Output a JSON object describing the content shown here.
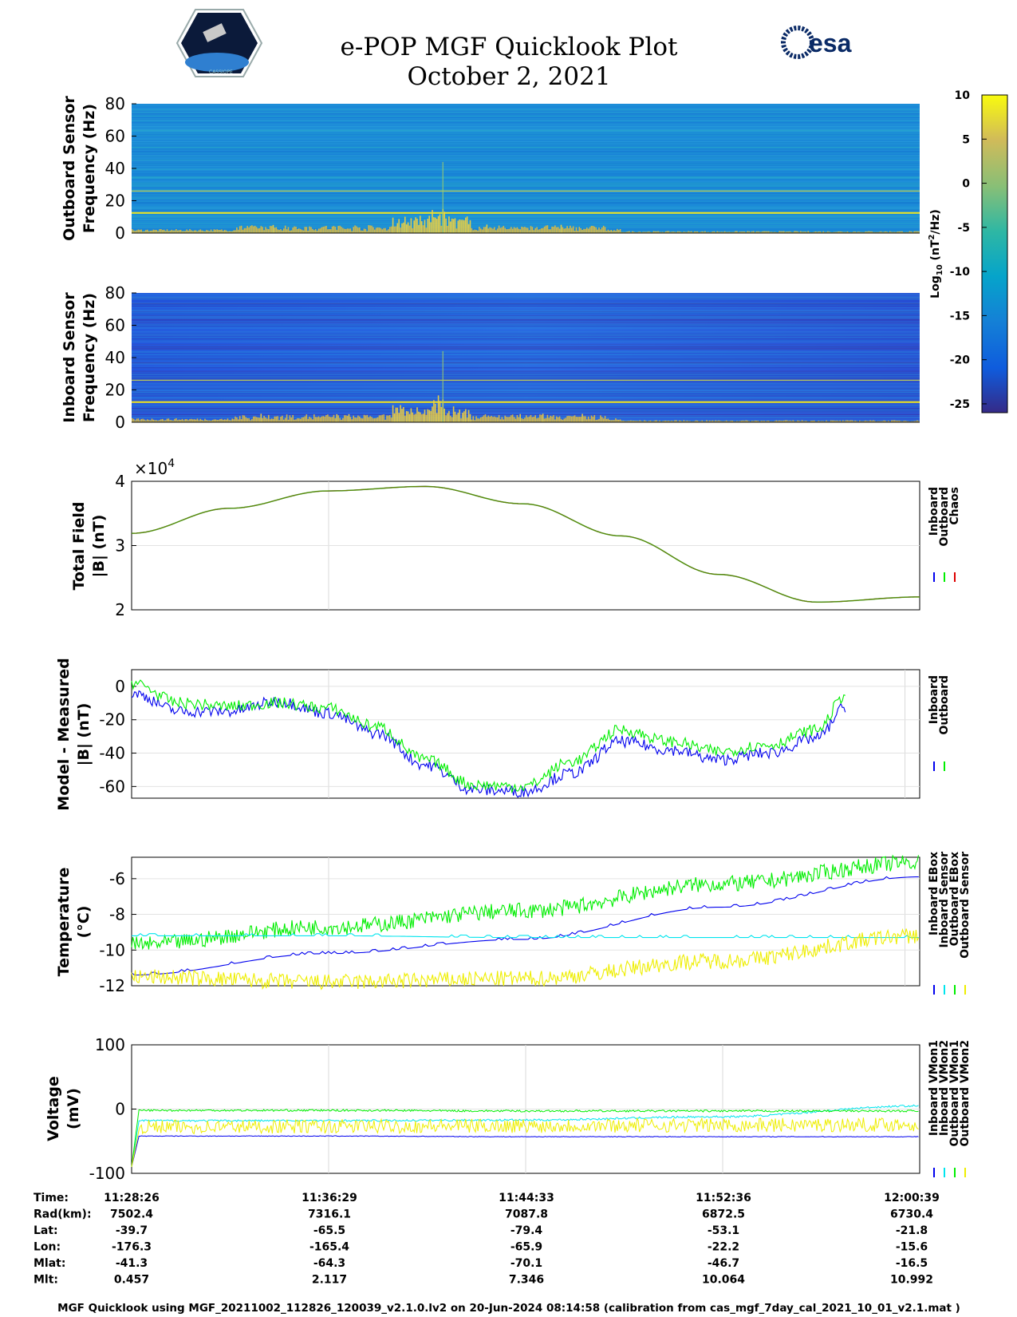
{
  "header": {
    "title": "e-POP MGF Quicklook Plot",
    "date": "October 2, 2021",
    "left_logo_text": "CASSIOPE",
    "right_logo_text": "esa"
  },
  "colors": {
    "inboard": "#0000ee",
    "outboard": "#00ee00",
    "chaos": "#dd0000",
    "inboard_sensor_temp": "#00e5ee",
    "outboard_sensor_temp": "#eeee00"
  },
  "chart_data": [
    {
      "type": "heatmap",
      "name": "outboard-spectrogram",
      "ylabel": [
        "Outboard Sensor",
        "Frequency (Hz)"
      ],
      "ylim": [
        0,
        80
      ],
      "yticks": [
        0,
        20,
        40,
        60,
        80
      ],
      "background_level": -14,
      "lines_hz": [
        12.5,
        26
      ]
    },
    {
      "type": "heatmap",
      "name": "inboard-spectrogram",
      "ylabel": [
        "Inboard Sensor",
        "Frequency (Hz)"
      ],
      "ylim": [
        0,
        80
      ],
      "yticks": [
        0,
        20,
        40,
        60,
        80
      ],
      "background_level": -18,
      "lines_hz": [
        12.5,
        26
      ]
    },
    {
      "type": "line",
      "name": "total-field",
      "ylabel": [
        "Total Field",
        "|B| (nT)"
      ],
      "ylim": [
        2,
        4
      ],
      "yticks": [
        2,
        3,
        4
      ],
      "exponent_label": "×10",
      "exponent": "4",
      "x_minutes": [
        0,
        4,
        8,
        12,
        16,
        20,
        24,
        28,
        32.2
      ],
      "series": [
        {
          "name": "Inboard",
          "values": [
            3.19,
            3.58,
            3.85,
            3.92,
            3.65,
            3.15,
            2.55,
            2.12,
            2.2
          ]
        },
        {
          "name": "Outboard",
          "values": [
            3.19,
            3.58,
            3.85,
            3.92,
            3.65,
            3.15,
            2.55,
            2.12,
            2.2
          ]
        },
        {
          "name": "Chaos",
          "values": [
            3.19,
            3.58,
            3.85,
            3.92,
            3.65,
            3.15,
            2.55,
            2.12,
            2.2
          ]
        }
      ],
      "legend": [
        "Inboard",
        "Outboard",
        "Chaos"
      ]
    },
    {
      "type": "line",
      "name": "model-minus-measured",
      "ylabel": [
        "Model - Measured",
        "|B| (nT)"
      ],
      "ylim": [
        -67,
        10
      ],
      "yticks": [
        -60,
        -40,
        -20,
        0
      ],
      "x_minutes": [
        0,
        2,
        4,
        6,
        8,
        10,
        12,
        14,
        16,
        18,
        20,
        22,
        24,
        26,
        28,
        29.2
      ],
      "series": [
        {
          "name": "Inboard",
          "values": [
            -4,
            -15,
            -15,
            -9,
            -16,
            -28,
            -47,
            -62,
            -63,
            -52,
            -33,
            -38,
            -44,
            -40,
            -31,
            -12
          ]
        },
        {
          "name": "Outboard",
          "values": [
            2,
            -10,
            -12,
            -10,
            -13,
            -24,
            -44,
            -59,
            -60,
            -45,
            -26,
            -33,
            -39,
            -35,
            -26,
            -5
          ]
        }
      ],
      "legend": [
        "Inboard",
        "Outboard"
      ]
    },
    {
      "type": "line",
      "name": "temperature",
      "ylabel": [
        "Temperature",
        "(°C)"
      ],
      "ylim": [
        -12,
        -4.8
      ],
      "yticks": [
        -12,
        -10,
        -8,
        -6
      ],
      "x_minutes": [
        0,
        8,
        16,
        24,
        32.2
      ],
      "series": [
        {
          "name": "Inboard EBox",
          "values": [
            -9.7,
            -8.7,
            -7.8,
            -6.3,
            -5.1
          ]
        },
        {
          "name": "Inboard Sensor",
          "values": [
            -11.4,
            -10.2,
            -9.4,
            -7.6,
            -5.9
          ]
        },
        {
          "name": "Outboard EBox",
          "values": [
            -9.2,
            -9.2,
            -9.3,
            -9.3,
            -9.3
          ]
        },
        {
          "name": "Outboard Sensor",
          "values": [
            -11.5,
            -11.8,
            -11.6,
            -10.6,
            -9.2
          ]
        }
      ],
      "legend": [
        "Inboard EBox",
        "Inboard Sensor",
        "Outboard EBox",
        "Outboard Sensor"
      ]
    },
    {
      "type": "line",
      "name": "voltage",
      "ylabel": [
        "Voltage",
        "(mV)"
      ],
      "ylim": [
        -100,
        100
      ],
      "yticks": [
        -100,
        0,
        100
      ],
      "x_minutes": [
        0,
        8,
        16,
        24,
        32.2
      ],
      "series": [
        {
          "name": "Inboard VMon1",
          "values": [
            -42,
            -42,
            -43,
            -43,
            -43
          ]
        },
        {
          "name": "Inboard VMon2",
          "values": [
            -18,
            -18,
            -17,
            -12,
            5
          ]
        },
        {
          "name": "Outboard VMon1",
          "values": [
            -2,
            -2,
            -3,
            -3,
            -3
          ]
        },
        {
          "name": "Outboard VMon2",
          "values": [
            -28,
            -27,
            -26,
            -25,
            -24
          ]
        }
      ],
      "legend": [
        "Inboard VMon1",
        "Inboard VMon2",
        "Outboard VMon1",
        "Outboard VMon2"
      ]
    }
  ],
  "colorbar": {
    "label": "Log10 (nT²/Hz)",
    "label_base": "Log",
    "label_sub": "10",
    "label_rest": " (nT",
    "label_sup": "2",
    "label_tail": "/Hz)",
    "ticks": [
      10,
      5,
      0,
      -5,
      -10,
      -15,
      -20,
      -25
    ]
  },
  "ephemeris": {
    "row_labels": [
      "Time:",
      "Rad(km):",
      "Lat:",
      "Lon:",
      "Mlat:",
      "Mlt:"
    ],
    "columns": [
      [
        "11:28:26",
        "7502.4",
        "-39.7",
        "-176.3",
        "-41.3",
        "0.457"
      ],
      [
        "11:36:29",
        "7316.1",
        "-65.5",
        "-165.4",
        "-64.3",
        "2.117"
      ],
      [
        "11:44:33",
        "7087.8",
        "-79.4",
        "-65.9",
        "-70.1",
        "7.346"
      ],
      [
        "11:52:36",
        "6872.5",
        "-53.1",
        "-22.2",
        "-46.7",
        "10.064"
      ],
      [
        "12:00:39",
        "6730.4",
        "-21.8",
        "-15.6",
        "-16.5",
        "10.992"
      ]
    ]
  },
  "footer": "MGF Quicklook using MGF_20211002_112826_120039_v2.1.0.lv2 on 20-Jun-2024 08:14:58 (calibration from cas_mgf_7day_cal_2021_10_01_v2.1.mat )"
}
